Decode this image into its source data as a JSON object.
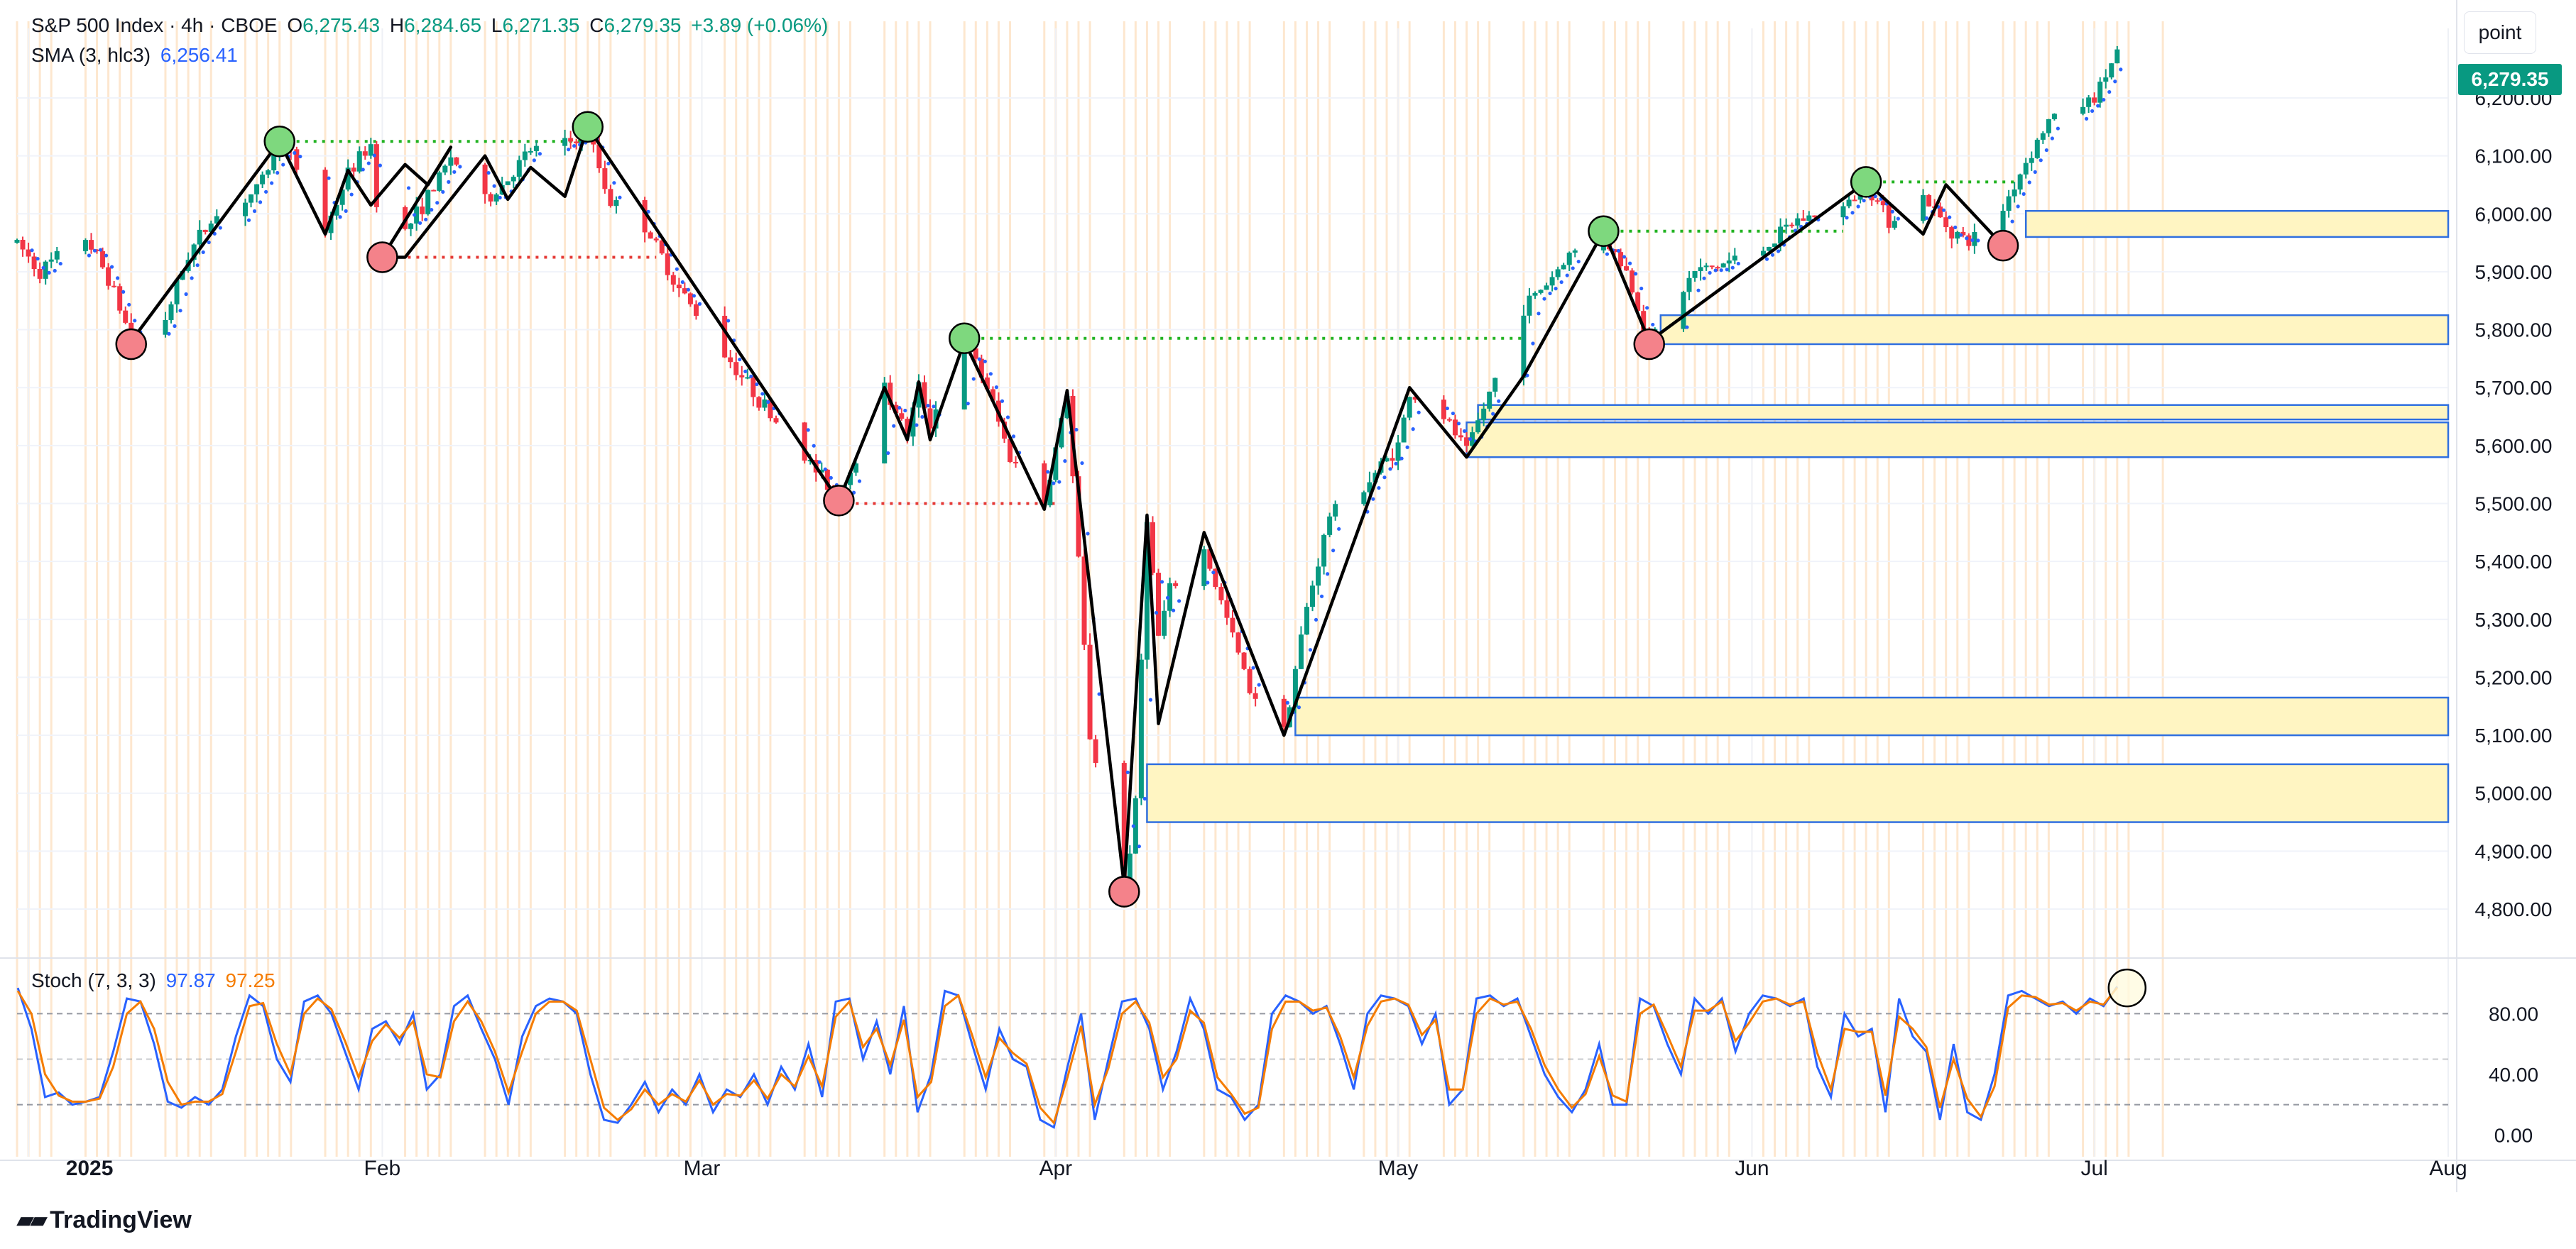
{
  "header": {
    "symbol_title": "S&P 500 Index · 4h · CBOE",
    "open_label": "O",
    "open_value": "6,275.43",
    "high_label": "H",
    "high_value": "6,284.65",
    "low_label": "L",
    "low_value": "6,271.35",
    "close_label": "C",
    "close_value": "6,279.35",
    "change": "+3.89 (+0.06%)"
  },
  "sma": {
    "label": "SMA (3, hlc3)",
    "value": "6,256.41"
  },
  "stoch": {
    "label": "Stoch (7, 3, 3)",
    "k_value": "97.87",
    "d_value": "97.25"
  },
  "unit_button": "point",
  "last_price_badge": "6,279.35",
  "branding": "TradingView",
  "colors": {
    "up": "#089981",
    "down": "#f23645",
    "zigzag": "#000000",
    "sma_dots": "#2962ff",
    "stoch_k": "#2962ff",
    "stoch_d": "#f57c00",
    "zone_fill": "#fff5c2",
    "zone_border": "#2f6fe0",
    "pivot_high": "#7ed87e",
    "pivot_low": "#f4828a",
    "vertical_bands": "#fde2c4"
  },
  "chart_data": [
    {
      "type": "candlestick",
      "title": "S&P 500 Index · 4h · CBOE",
      "x_tick_labels": [
        "2025",
        "Feb",
        "Mar",
        "Apr",
        "May",
        "Jun",
        "Jul",
        "Aug"
      ],
      "x_ticks": [
        "2025-01-01",
        "2025-02-01",
        "2025-03-01",
        "2025-04-01",
        "2025-05-01",
        "2025-06-01",
        "2025-07-01",
        "2025-08-01"
      ],
      "y_tick_labels": [
        "6,200.00",
        "6,100.00",
        "6,000.00",
        "5,900.00",
        "5,800.00",
        "5,700.00",
        "5,600.00",
        "5,500.00",
        "5,400.00",
        "5,300.00",
        "5,200.00",
        "5,100.00",
        "5,000.00",
        "4,900.00",
        "4,800.00"
      ],
      "ylim": [
        4740,
        6320
      ],
      "xlim": [
        "2024-12-31",
        "2025-08-01"
      ],
      "price_path": [
        [
          "2024-12-31",
          5950
        ],
        [
          "2025-01-02",
          5900
        ],
        [
          "2025-01-06",
          5960
        ],
        [
          "2025-01-08",
          5890
        ],
        [
          "2025-01-10",
          5785
        ],
        [
          "2025-01-13",
          5820
        ],
        [
          "2025-01-15",
          5930
        ],
        [
          "2025-01-17",
          5990
        ],
        [
          "2025-01-21",
          6040
        ],
        [
          "2025-01-23",
          6120
        ],
        [
          "2025-01-24",
          6100
        ],
        [
          "2025-01-27",
          5970
        ],
        [
          "2025-01-29",
          6070
        ],
        [
          "2025-01-31",
          6120
        ],
        [
          "2025-02-01",
          5930
        ],
        [
          "2025-02-03",
          5970
        ],
        [
          "2025-02-06",
          6060
        ],
        [
          "2025-02-07",
          6100
        ],
        [
          "2025-02-10",
          6020
        ],
        [
          "2025-02-12",
          6060
        ],
        [
          "2025-02-14",
          6110
        ],
        [
          "2025-02-17",
          6120
        ],
        [
          "2025-02-19",
          6140
        ],
        [
          "2025-02-21",
          6020
        ],
        [
          "2025-02-24",
          5980
        ],
        [
          "2025-02-27",
          5870
        ],
        [
          "2025-03-03",
          5760
        ],
        [
          "2025-03-06",
          5680
        ],
        [
          "2025-03-10",
          5580
        ],
        [
          "2025-03-13",
          5510
        ],
        [
          "2025-03-14",
          5560
        ],
        [
          "2025-03-17",
          5700
        ],
        [
          "2025-03-19",
          5620
        ],
        [
          "2025-03-20",
          5700
        ],
        [
          "2025-03-21",
          5640
        ],
        [
          "2025-03-24",
          5780
        ],
        [
          "2025-03-26",
          5700
        ],
        [
          "2025-03-28",
          5580
        ],
        [
          "2025-03-31",
          5500
        ],
        [
          "2025-04-02",
          5690
        ],
        [
          "2025-04-03",
          5400
        ],
        [
          "2025-04-04",
          5100
        ],
        [
          "2025-04-07",
          4830
        ],
        [
          "2025-04-08",
          4980
        ],
        [
          "2025-04-09",
          5480
        ],
        [
          "2025-04-10",
          5270
        ],
        [
          "2025-04-11",
          5350
        ],
        [
          "2025-04-14",
          5420
        ],
        [
          "2025-04-16",
          5300
        ],
        [
          "2025-04-18",
          5180
        ],
        [
          "2025-04-21",
          5110
        ],
        [
          "2025-04-23",
          5320
        ],
        [
          "2025-04-25",
          5480
        ],
        [
          "2025-04-28",
          5530
        ],
        [
          "2025-05-01",
          5600
        ],
        [
          "2025-05-02",
          5690
        ],
        [
          "2025-05-05",
          5650
        ],
        [
          "2025-05-07",
          5590
        ],
        [
          "2025-05-08",
          5640
        ],
        [
          "2025-05-12",
          5840
        ],
        [
          "2025-05-14",
          5880
        ],
        [
          "2025-05-16",
          5930
        ],
        [
          "2025-05-19",
          5960
        ],
        [
          "2025-05-21",
          5900
        ],
        [
          "2025-05-23",
          5780
        ],
        [
          "2025-05-27",
          5900
        ],
        [
          "2025-05-29",
          5910
        ],
        [
          "2025-06-02",
          5940
        ],
        [
          "2025-06-05",
          5990
        ],
        [
          "2025-06-09",
          6010
        ],
        [
          "2025-06-11",
          6050
        ],
        [
          "2025-06-13",
          5990
        ],
        [
          "2025-06-16",
          6030
        ],
        [
          "2025-06-18",
          5980
        ],
        [
          "2025-06-20",
          5950
        ],
        [
          "2025-06-23",
          6010
        ],
        [
          "2025-06-25",
          6090
        ],
        [
          "2025-06-27",
          6160
        ],
        [
          "2025-07-01",
          6200
        ],
        [
          "2025-07-03",
          6279.35
        ]
      ],
      "sma_last": 6256.41
    },
    {
      "type": "zigzag",
      "points": [
        [
          "2025-01-10",
          5780
        ],
        [
          "2025-01-23",
          6125
        ],
        [
          "2025-01-27",
          5965
        ],
        [
          "2025-01-29",
          6075
        ],
        [
          "2025-01-31",
          6015
        ],
        [
          "2025-02-03",
          6085
        ],
        [
          "2025-02-05",
          6050
        ],
        [
          "2025-02-07",
          6115
        ],
        [
          "2025-02-01",
          5925
        ],
        [
          "2025-02-03",
          5925
        ],
        [
          "2025-02-10",
          6100
        ],
        [
          "2025-02-12",
          6025
        ],
        [
          "2025-02-14",
          6080
        ],
        [
          "2025-02-17",
          6030
        ],
        [
          "2025-02-19",
          6150
        ],
        [
          "2025-03-13",
          5505
        ],
        [
          "2025-03-17",
          5700
        ],
        [
          "2025-03-19",
          5610
        ],
        [
          "2025-03-20",
          5710
        ],
        [
          "2025-03-21",
          5610
        ],
        [
          "2025-03-24",
          5780
        ],
        [
          "2025-03-31",
          5490
        ],
        [
          "2025-04-02",
          5695
        ],
        [
          "2025-04-07",
          4840
        ],
        [
          "2025-04-09",
          5480
        ],
        [
          "2025-04-10",
          5120
        ],
        [
          "2025-04-14",
          5450
        ],
        [
          "2025-04-21",
          5100
        ],
        [
          "2025-05-02",
          5700
        ],
        [
          "2025-05-07",
          5580
        ],
        [
          "2025-05-12",
          5720
        ],
        [
          "2025-05-19",
          5970
        ],
        [
          "2025-05-23",
          5780
        ],
        [
          "2025-06-11",
          6055
        ],
        [
          "2025-06-16",
          5965
        ],
        [
          "2025-06-18",
          6050
        ],
        [
          "2025-06-23",
          5945
        ]
      ]
    },
    {
      "type": "pivots",
      "highs": [
        [
          "2025-01-23",
          6125
        ],
        [
          "2025-02-19",
          6150
        ],
        [
          "2025-03-24",
          5785
        ],
        [
          "2025-05-19",
          5970
        ],
        [
          "2025-06-11",
          6055
        ]
      ],
      "lows": [
        [
          "2025-01-10",
          5775
        ],
        [
          "2025-02-01",
          5925
        ],
        [
          "2025-03-13",
          5505
        ],
        [
          "2025-04-07",
          4830
        ],
        [
          "2025-05-23",
          5775
        ],
        [
          "2025-06-23",
          5945
        ]
      ]
    },
    {
      "type": "levels",
      "dotted_lines": [
        {
          "from": "2025-01-23",
          "to": "2025-02-19",
          "price": 6125,
          "kind": "high"
        },
        {
          "from": "2025-02-01",
          "to": "2025-02-25",
          "price": 5925,
          "kind": "low"
        },
        {
          "from": "2025-03-13",
          "to": "2025-04-01",
          "price": 5500,
          "kind": "low"
        },
        {
          "from": "2025-03-24",
          "to": "2025-05-12",
          "price": 5785,
          "kind": "high"
        },
        {
          "from": "2025-05-19",
          "to": "2025-06-09",
          "price": 5970,
          "kind": "high"
        },
        {
          "from": "2025-06-11",
          "to": "2025-06-25",
          "price": 6055,
          "kind": "high"
        }
      ],
      "zones": [
        {
          "from": "2025-06-25",
          "to": "2025-08-01",
          "top": 6005,
          "bottom": 5960
        },
        {
          "from": "2025-05-24",
          "to": "2025-08-01",
          "top": 5825,
          "bottom": 5775
        },
        {
          "from": "2025-05-08",
          "to": "2025-08-01",
          "top": 5670,
          "bottom": 5645
        },
        {
          "from": "2025-05-07",
          "to": "2025-08-01",
          "top": 5640,
          "bottom": 5580
        },
        {
          "from": "2025-04-22",
          "to": "2025-08-01",
          "top": 5165,
          "bottom": 5100
        },
        {
          "from": "2025-04-09",
          "to": "2025-08-01",
          "top": 5050,
          "bottom": 4950
        }
      ]
    },
    {
      "type": "line",
      "title": "Stoch (7, 3, 3)",
      "y_tick_labels": [
        "80.00",
        "40.00",
        "0.00"
      ],
      "ylim": [
        -5,
        105
      ],
      "levels": [
        80,
        50,
        20
      ],
      "series": [
        {
          "name": "K",
          "values": [
            97,
            70,
            25,
            28,
            20,
            22,
            25,
            55,
            90,
            88,
            60,
            22,
            18,
            25,
            20,
            30,
            65,
            92,
            85,
            50,
            35,
            88,
            92,
            80,
            55,
            30,
            70,
            75,
            60,
            80,
            30,
            40,
            85,
            92,
            70,
            50,
            20,
            65,
            85,
            90,
            88,
            80,
            40,
            10,
            8,
            20,
            35,
            15,
            30,
            20,
            40,
            15,
            30,
            25,
            40,
            20,
            45,
            30,
            60,
            25,
            88,
            90,
            50,
            75,
            40,
            85,
            15,
            40,
            95,
            92,
            60,
            30,
            70,
            50,
            45,
            10,
            5,
            45,
            80,
            10,
            50,
            88,
            90,
            70,
            30,
            55,
            90,
            70,
            30,
            25,
            10,
            20,
            80,
            92,
            88,
            80,
            85,
            60,
            30,
            80,
            92,
            90,
            85,
            60,
            80,
            20,
            30,
            90,
            92,
            85,
            90,
            65,
            40,
            25,
            15,
            30,
            60,
            20,
            20,
            90,
            85,
            60,
            40,
            90,
            80,
            90,
            55,
            80,
            92,
            90,
            85,
            90,
            45,
            25,
            80,
            65,
            70,
            15,
            90,
            65,
            55,
            10,
            60,
            15,
            10,
            40,
            92,
            95,
            90,
            85,
            88,
            80,
            90,
            85,
            97.87
          ]
        },
        {
          "name": "D",
          "values": [
            95,
            80,
            40,
            26,
            22,
            22,
            24,
            45,
            80,
            88,
            70,
            35,
            20,
            22,
            22,
            27,
            55,
            85,
            87,
            60,
            40,
            80,
            90,
            83,
            62,
            38,
            62,
            73,
            64,
            75,
            40,
            38,
            75,
            88,
            75,
            55,
            28,
            55,
            80,
            88,
            88,
            82,
            50,
            18,
            10,
            17,
            30,
            20,
            27,
            22,
            36,
            20,
            27,
            26,
            36,
            24,
            40,
            32,
            52,
            32,
            78,
            88,
            58,
            70,
            46,
            76,
            25,
            35,
            85,
            92,
            66,
            38,
            64,
            54,
            47,
            18,
            8,
            38,
            72,
            20,
            44,
            80,
            88,
            74,
            38,
            50,
            82,
            74,
            38,
            27,
            14,
            18,
            70,
            88,
            88,
            82,
            84,
            65,
            38,
            72,
            88,
            90,
            86,
            66,
            76,
            30,
            30,
            80,
            90,
            86,
            88,
            70,
            46,
            30,
            18,
            27,
            52,
            26,
            22,
            80,
            86,
            66,
            45,
            82,
            82,
            88,
            62,
            74,
            88,
            90,
            86,
            88,
            54,
            30,
            70,
            68,
            68,
            26,
            78,
            70,
            58,
            18,
            50,
            24,
            12,
            32,
            84,
            92,
            91,
            86,
            87,
            82,
            88,
            86,
            97.25
          ]
        }
      ]
    }
  ]
}
